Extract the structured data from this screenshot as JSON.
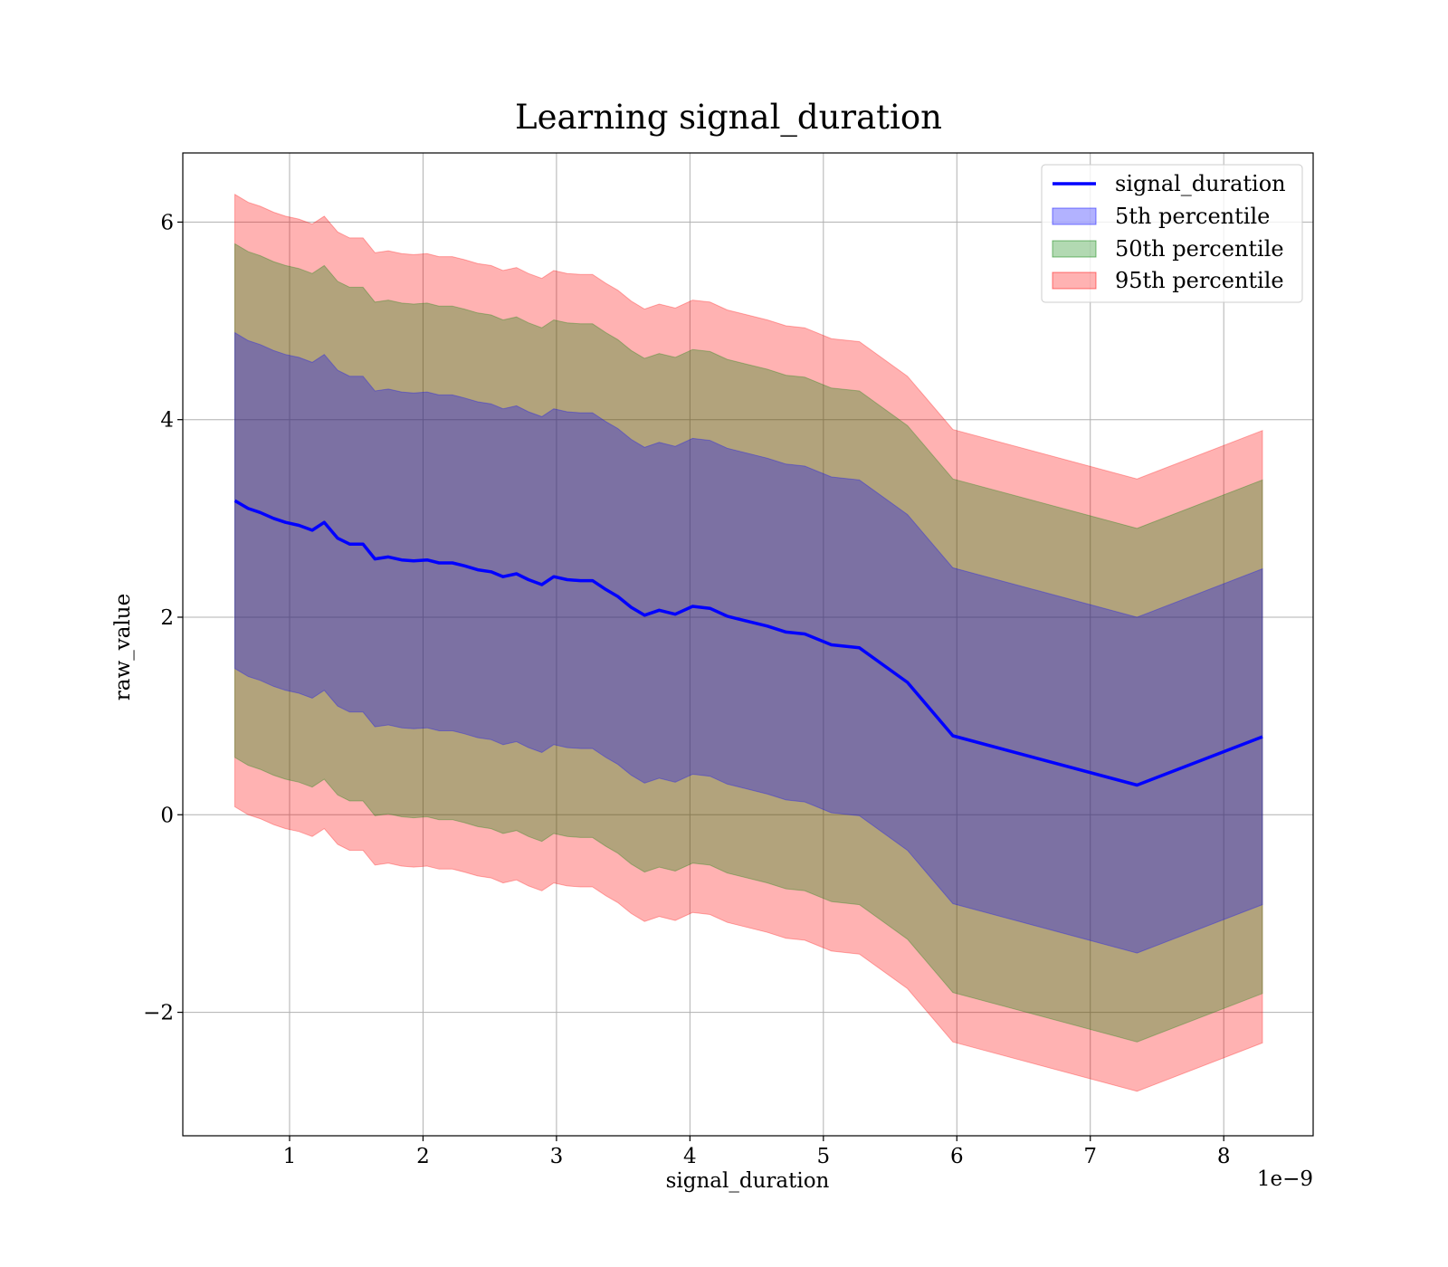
{
  "chart_data": {
    "type": "area",
    "title": "Learning signal_duration",
    "xlabel": "signal_duration",
    "ylabel": "raw_value",
    "x_offset_label": "1e−9",
    "xlim": [
      0.2,
      8.67
    ],
    "ylim": [
      -3.25,
      6.7
    ],
    "x_ticks": [
      1,
      2,
      3,
      4,
      5,
      6,
      7,
      8
    ],
    "y_ticks": [
      -2,
      0,
      2,
      4,
      6
    ],
    "x_tick_labels": [
      "1",
      "2",
      "3",
      "4",
      "5",
      "6",
      "7",
      "8"
    ],
    "y_tick_labels": [
      "−2",
      "0",
      "2",
      "4",
      "6"
    ],
    "grid": true,
    "legend_position": "top-right",
    "x": [
      0.59,
      0.69,
      0.78,
      0.88,
      0.97,
      1.07,
      1.17,
      1.26,
      1.36,
      1.45,
      1.55,
      1.64,
      1.74,
      1.84,
      1.93,
      2.03,
      2.12,
      2.22,
      2.31,
      2.41,
      2.51,
      2.6,
      2.7,
      2.79,
      2.89,
      2.98,
      3.08,
      3.18,
      3.27,
      3.37,
      3.46,
      3.56,
      3.66,
      3.77,
      3.89,
      4.02,
      4.15,
      4.28,
      4.43,
      4.58,
      4.72,
      4.86,
      5.06,
      5.27,
      5.63,
      5.97,
      7.35,
      8.29
    ],
    "center": [
      3.18,
      3.1,
      3.06,
      3.0,
      2.96,
      2.93,
      2.88,
      2.96,
      2.8,
      2.74,
      2.74,
      2.59,
      2.61,
      2.58,
      2.57,
      2.58,
      2.55,
      2.55,
      2.52,
      2.48,
      2.46,
      2.41,
      2.44,
      2.38,
      2.33,
      2.41,
      2.38,
      2.37,
      2.37,
      2.28,
      2.21,
      2.1,
      2.02,
      2.07,
      2.03,
      2.11,
      2.09,
      2.01,
      1.96,
      1.91,
      1.85,
      1.83,
      1.72,
      1.69,
      1.34,
      0.8,
      0.3,
      0.79
    ],
    "half_widths": [
      1.7,
      2.6,
      3.1
    ],
    "series": [
      {
        "name": "signal_duration",
        "color": "#0000ff"
      },
      {
        "name": "5th percentile",
        "color": "#0000ff",
        "alpha": 0.3
      },
      {
        "name": "50th percentile",
        "color": "#008000",
        "alpha": 0.3
      },
      {
        "name": "95th percentile",
        "color": "#ff0000",
        "alpha": 0.3
      }
    ]
  }
}
